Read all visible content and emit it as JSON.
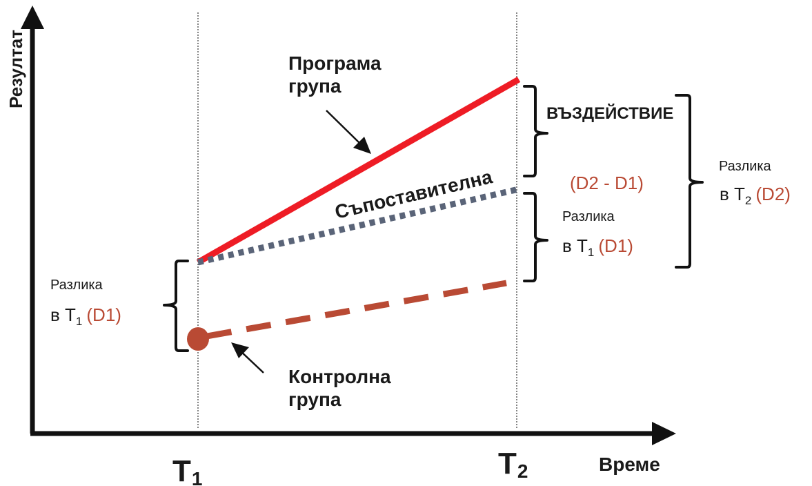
{
  "axes": {
    "y_label": "Резултат",
    "x_label": "Време",
    "t1": {
      "main": "T",
      "sub": "1"
    },
    "t2": {
      "main": "T",
      "sub": "2"
    }
  },
  "labels": {
    "program_group": [
      "Програма",
      "група"
    ],
    "comparison": "Съпоставителна",
    "control_group": [
      "Контролна",
      "група"
    ],
    "impact": "ВЪЗДЕЙСТВИЕ",
    "d2_minus_d1": "(D2 - D1)",
    "diff_word": "Разлика",
    "in_word": "в T",
    "sub1": "1",
    "sub2": "2",
    "d1": "(D1)",
    "d2": "(D2)"
  },
  "colors": {
    "program_line": "#ee1c25",
    "comparison_line": "#5a6478",
    "control_line": "#b94a34",
    "accent_text": "#b94a34",
    "axis": "#111111"
  }
}
